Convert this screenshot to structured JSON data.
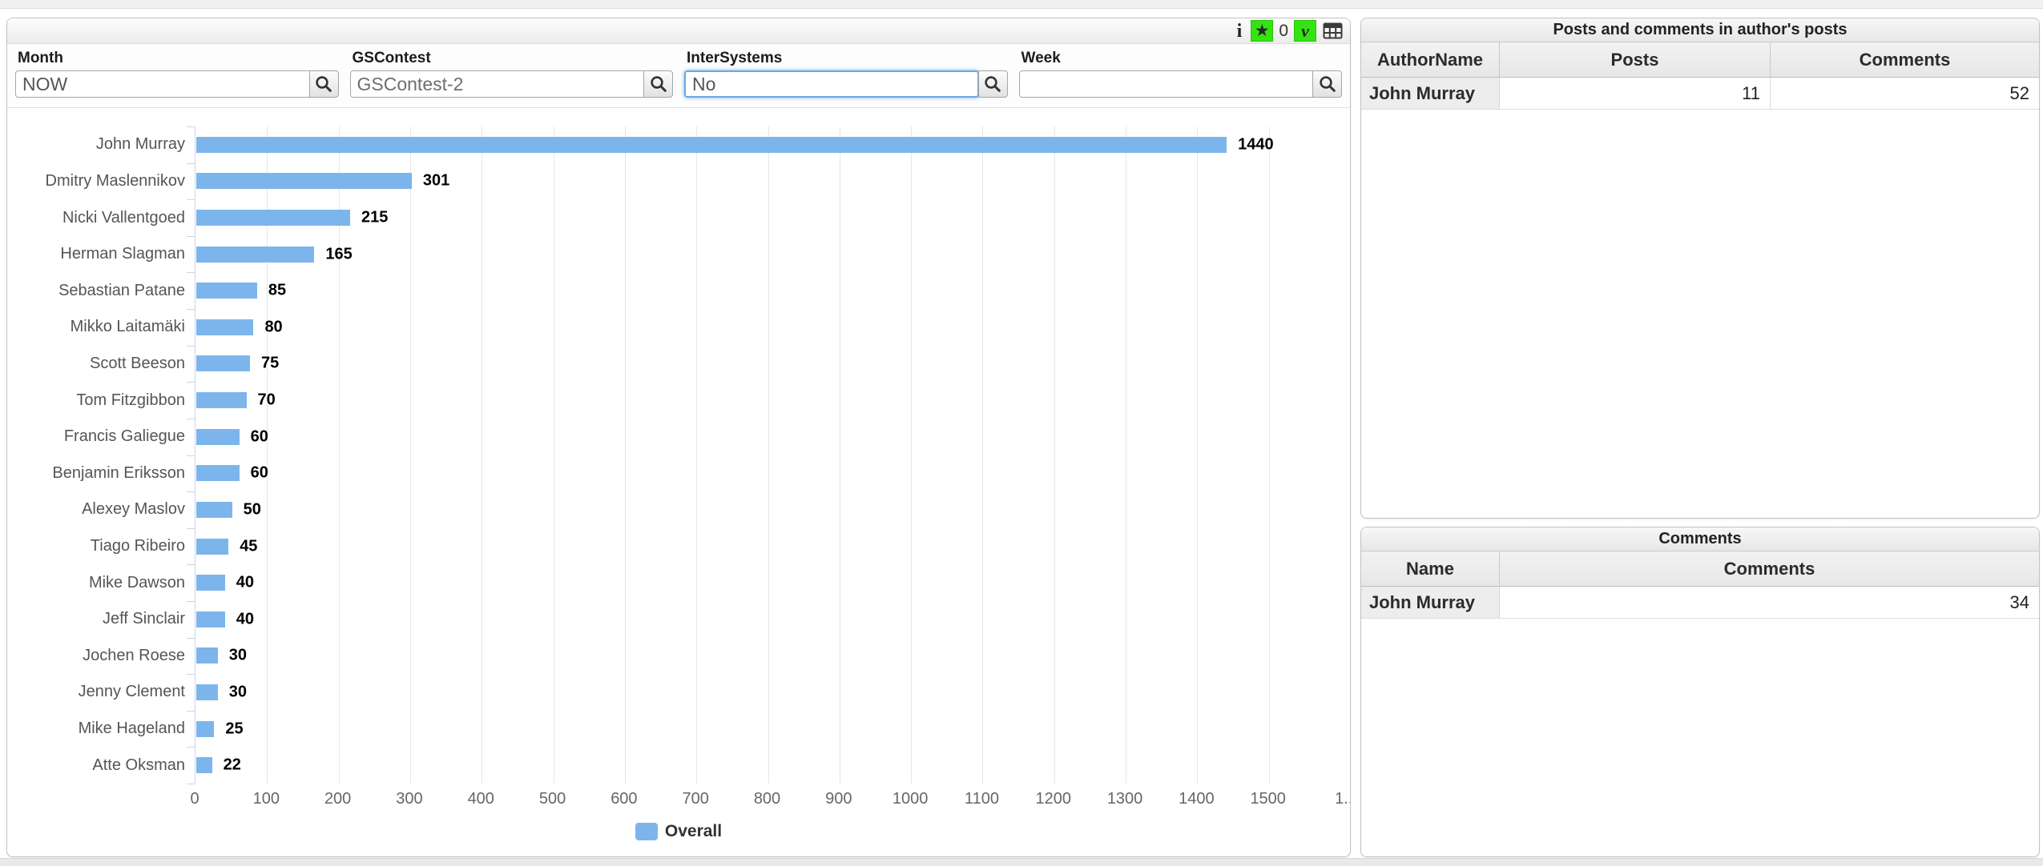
{
  "toolbar": {
    "info_glyph": "i",
    "star_glyph": "★",
    "star_count": "0",
    "check_glyph": "v",
    "green_color": "#35e314"
  },
  "filters": {
    "items": [
      {
        "label": "Month",
        "value": "NOW"
      },
      {
        "label": "GSContest",
        "value": "GSContest-2"
      },
      {
        "label": "InterSystems",
        "value": "No",
        "focused": true
      },
      {
        "label": "Week",
        "value": ""
      }
    ]
  },
  "chart_data": {
    "type": "bar",
    "orientation": "horizontal",
    "title": "",
    "categories": [
      "John Murray",
      "Dmitry Maslennikov",
      "Nicki Vallentgoed",
      "Herman Slagman",
      "Sebastian Patane",
      "Mikko Laitamäki",
      "Scott Beeson",
      "Tom Fitzgibbon",
      "Francis Galiegue",
      "Benjamin Eriksson",
      "Alexey Maslov",
      "Tiago Ribeiro",
      "Mike Dawson",
      "Jeff Sinclair",
      "Jochen Roese",
      "Jenny Clement",
      "Mike Hageland",
      "Atte Oksman"
    ],
    "values": [
      1440,
      301,
      215,
      165,
      85,
      80,
      75,
      70,
      60,
      60,
      50,
      45,
      40,
      40,
      30,
      30,
      25,
      22
    ],
    "series_name": "Overall",
    "xlim": [
      0,
      1600
    ],
    "x_ticks": [
      0,
      100,
      200,
      300,
      400,
      500,
      600,
      700,
      800,
      900,
      1000,
      1100,
      1200,
      1300,
      1400,
      1500
    ],
    "x_overflow_label": "1...",
    "data_labels": true,
    "grid": true,
    "bar_color": "#7cb5ec",
    "axis_line_color": "#ccd6eb",
    "grid_color": "#e6e6e6",
    "legend": {
      "label": "Overall",
      "position": "bottom-center"
    }
  },
  "tables": {
    "posts": {
      "title": "Posts and comments in author's posts",
      "columns": [
        "AuthorName",
        "Posts",
        "Comments"
      ],
      "rows": [
        {
          "author": "John Murray",
          "posts": "11",
          "comments": "52"
        }
      ]
    },
    "comments": {
      "title": "Comments",
      "columns": [
        "Name",
        "Comments"
      ],
      "rows": [
        {
          "name": "John Murray",
          "comments": "34"
        }
      ]
    }
  }
}
